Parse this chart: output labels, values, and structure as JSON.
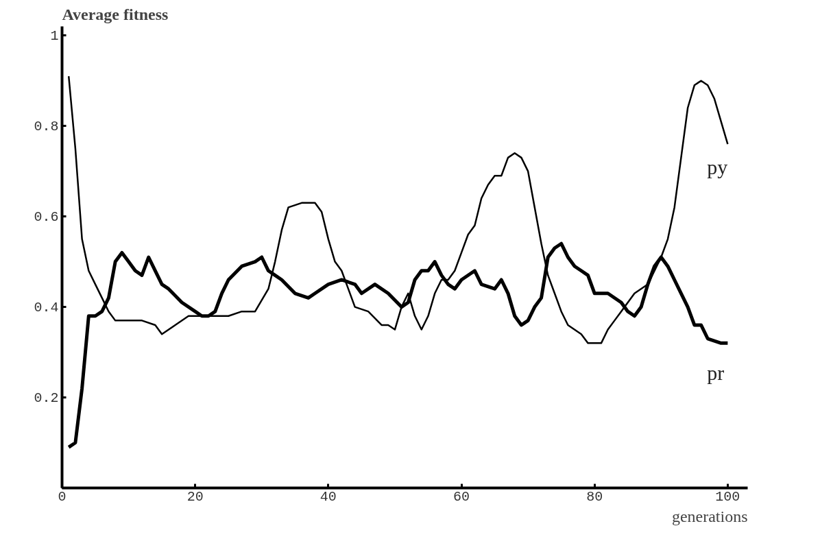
{
  "chart_data": {
    "type": "line",
    "ylabel": "Average fitness",
    "xlabel": "generations",
    "xlim": [
      0,
      103
    ],
    "ylim": [
      0,
      1.02
    ],
    "xticks": [
      0,
      20,
      40,
      60,
      80,
      100
    ],
    "yticks": [
      {
        "value": 0,
        "label": null
      },
      0.2,
      0.4,
      0.6,
      0.8,
      1
    ],
    "grid": false,
    "marker": "none",
    "line_style": "solid",
    "series": [
      {
        "name": "py",
        "color": "#000000",
        "x": [
          1,
          2,
          3,
          4,
          5,
          6,
          7,
          8,
          10,
          12,
          14,
          15,
          17,
          19,
          21,
          23,
          25,
          27,
          29,
          31,
          32,
          33,
          34,
          36,
          38,
          39,
          40,
          41,
          42,
          43,
          44,
          46,
          48,
          49,
          50,
          51,
          52,
          53,
          54,
          55,
          56,
          57,
          58,
          59,
          60,
          61,
          62,
          63,
          64,
          65,
          66,
          67,
          68,
          69,
          70,
          71,
          72,
          73,
          74,
          75,
          76,
          78,
          79,
          81,
          82,
          83,
          84,
          86,
          88,
          90,
          91,
          92,
          93,
          94,
          95,
          96,
          97,
          98,
          99,
          100
        ],
        "values": [
          0.91,
          0.75,
          0.55,
          0.48,
          0.45,
          0.42,
          0.39,
          0.37,
          0.37,
          0.37,
          0.36,
          0.34,
          0.36,
          0.38,
          0.38,
          0.38,
          0.38,
          0.39,
          0.39,
          0.44,
          0.5,
          0.57,
          0.62,
          0.63,
          0.63,
          0.61,
          0.55,
          0.5,
          0.48,
          0.44,
          0.4,
          0.39,
          0.36,
          0.36,
          0.35,
          0.4,
          0.43,
          0.38,
          0.35,
          0.38,
          0.43,
          0.46,
          0.46,
          0.48,
          0.52,
          0.56,
          0.58,
          0.64,
          0.67,
          0.69,
          0.69,
          0.73,
          0.74,
          0.73,
          0.7,
          0.62,
          0.54,
          0.47,
          0.43,
          0.39,
          0.36,
          0.34,
          0.32,
          0.32,
          0.35,
          0.37,
          0.39,
          0.43,
          0.45,
          0.51,
          0.55,
          0.62,
          0.73,
          0.84,
          0.89,
          0.9,
          0.89,
          0.86,
          0.81,
          0.76
        ]
      },
      {
        "name": "pr",
        "color": "#000000",
        "x": [
          1,
          2,
          3,
          4,
          5,
          6,
          7,
          8,
          9,
          10,
          11,
          12,
          13,
          14,
          15,
          16,
          18,
          20,
          21,
          22,
          23,
          24,
          25,
          27,
          29,
          30,
          31,
          32,
          33,
          35,
          37,
          38,
          40,
          42,
          44,
          45,
          47,
          49,
          51,
          52,
          53,
          54,
          55,
          56,
          57,
          58,
          59,
          60,
          62,
          63,
          65,
          66,
          67,
          68,
          69,
          70,
          71,
          72,
          73,
          74,
          75,
          76,
          77,
          78,
          79,
          80,
          82,
          84,
          85,
          86,
          87,
          88,
          89,
          90,
          91,
          92,
          93,
          94,
          95,
          96,
          97,
          99,
          100
        ],
        "values": [
          0.09,
          0.1,
          0.22,
          0.38,
          0.38,
          0.39,
          0.42,
          0.5,
          0.52,
          0.5,
          0.48,
          0.47,
          0.51,
          0.48,
          0.45,
          0.44,
          0.41,
          0.39,
          0.38,
          0.38,
          0.39,
          0.43,
          0.46,
          0.49,
          0.5,
          0.51,
          0.48,
          0.47,
          0.46,
          0.43,
          0.42,
          0.43,
          0.45,
          0.46,
          0.45,
          0.43,
          0.45,
          0.43,
          0.4,
          0.41,
          0.46,
          0.48,
          0.48,
          0.5,
          0.47,
          0.45,
          0.44,
          0.46,
          0.48,
          0.45,
          0.44,
          0.46,
          0.43,
          0.38,
          0.36,
          0.37,
          0.4,
          0.42,
          0.51,
          0.53,
          0.54,
          0.51,
          0.49,
          0.48,
          0.47,
          0.43,
          0.43,
          0.41,
          0.39,
          0.38,
          0.4,
          0.45,
          0.49,
          0.51,
          0.49,
          0.46,
          0.43,
          0.4,
          0.36,
          0.36,
          0.33,
          0.32,
          0.32
        ]
      }
    ]
  }
}
